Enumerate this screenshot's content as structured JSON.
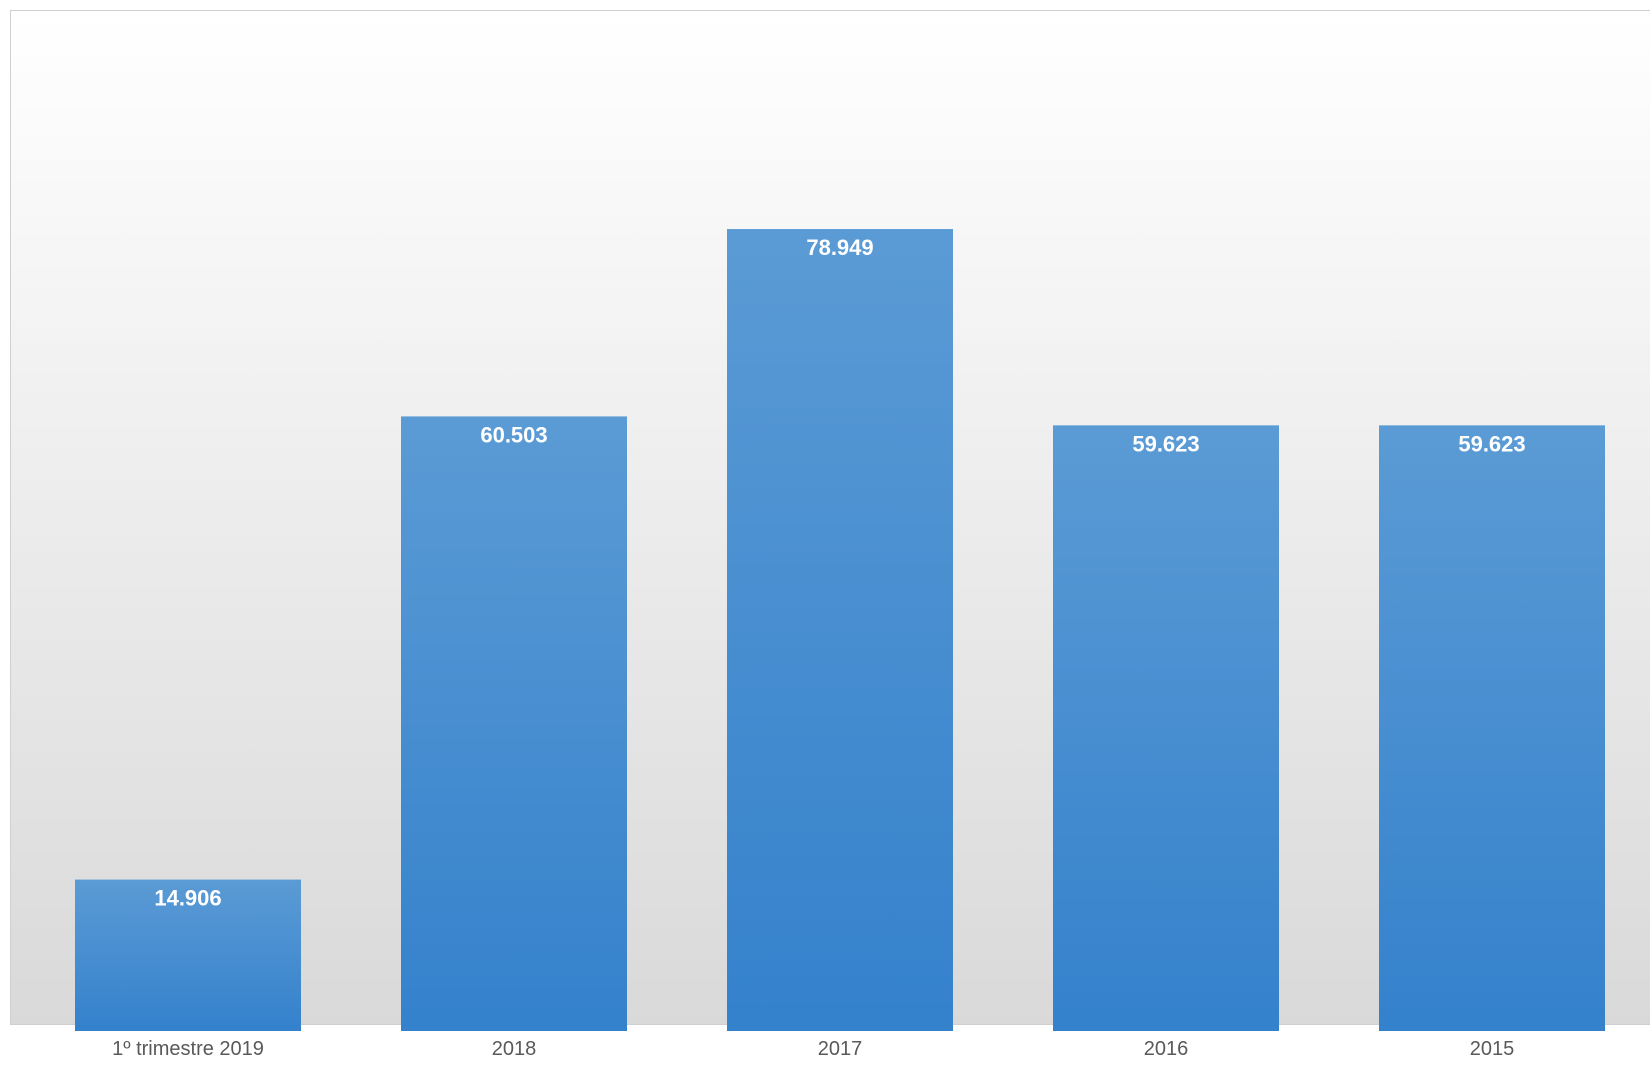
{
  "chart_data": {
    "type": "bar",
    "categories": [
      "1º trimestre 2019",
      "2018",
      "2017",
      "2016",
      "2015"
    ],
    "values": [
      14906,
      60503,
      78949,
      59623,
      59623
    ],
    "data_labels": [
      "14.906",
      "60.503",
      "78.949",
      "59.623",
      "59.623"
    ],
    "title": "",
    "xlabel": "",
    "ylabel": "",
    "ylim": [
      0,
      95000
    ],
    "grid": false,
    "legend": "none",
    "bar_color_top": "#5b9bd5",
    "bar_color_bottom": "#3481cc"
  }
}
